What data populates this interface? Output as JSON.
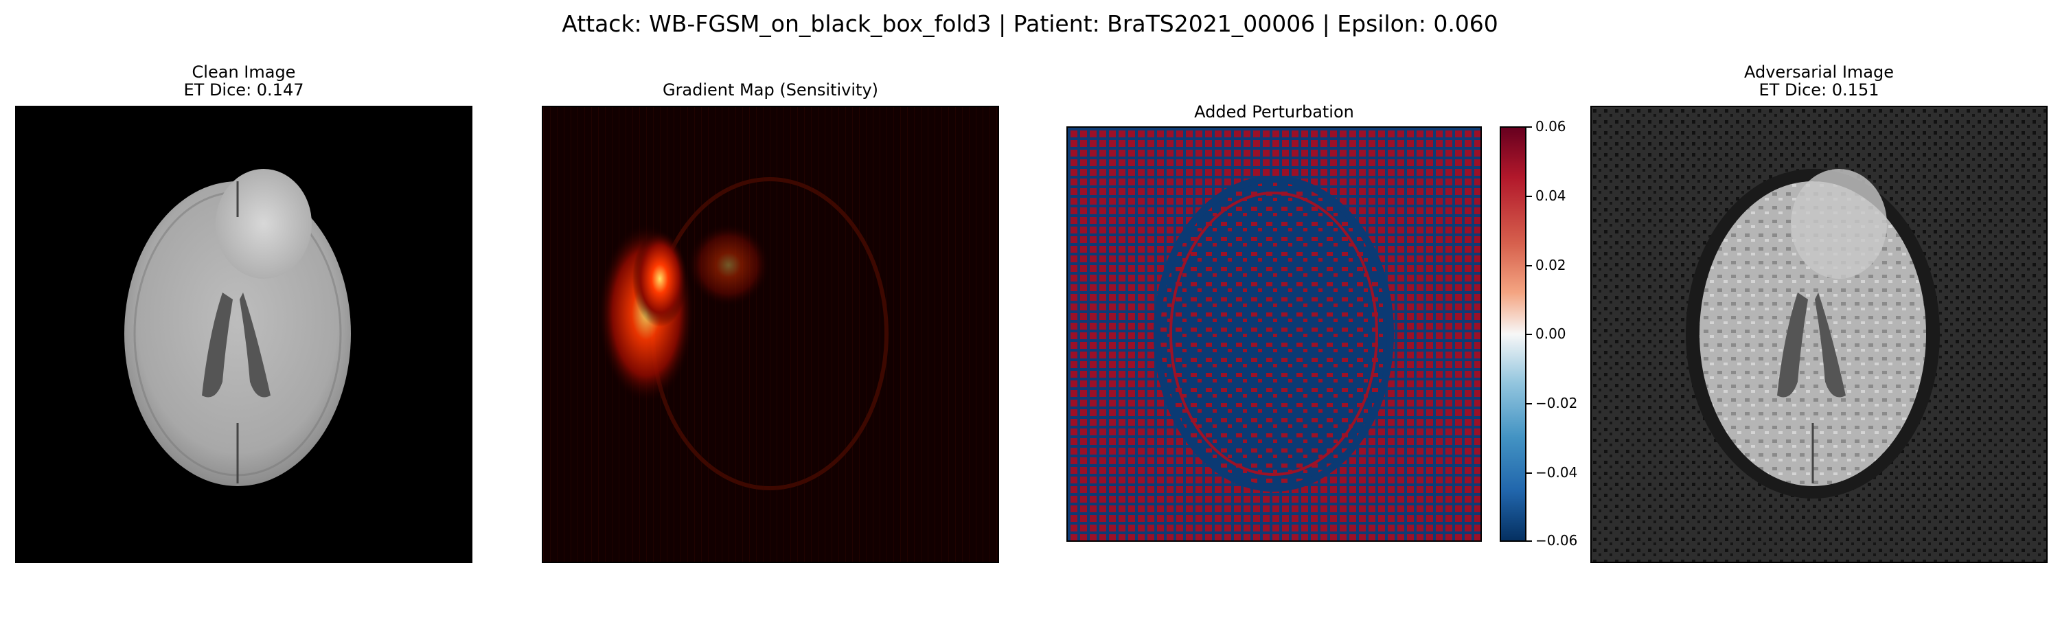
{
  "figure": {
    "suptitle": "Attack: WB-FGSM_on_black_box_fold3 | Patient: BraTS2021_00006 | Epsilon: 0.060"
  },
  "panels": [
    {
      "title_line1": "Clean Image",
      "title_line2": "ET Dice: 0.147",
      "colormap": "gray"
    },
    {
      "title_line1": "Gradient Map (Sensitivity)",
      "title_line2": "",
      "colormap": "hot"
    },
    {
      "title_line1": "Added Perturbation",
      "title_line2": "",
      "colormap": "RdBu_r"
    },
    {
      "title_line1": "Adversarial Image",
      "title_line2": "ET Dice: 0.151",
      "colormap": "gray"
    }
  ],
  "colorbar": {
    "range": [
      -0.06,
      0.06
    ],
    "ticks": [
      "0.06",
      "0.04",
      "0.02",
      "0.00",
      "−0.02",
      "−0.04",
      "−0.06"
    ],
    "colors": {
      "high": "#67001f",
      "mid": "#f7f7f7",
      "low": "#053061"
    }
  }
}
